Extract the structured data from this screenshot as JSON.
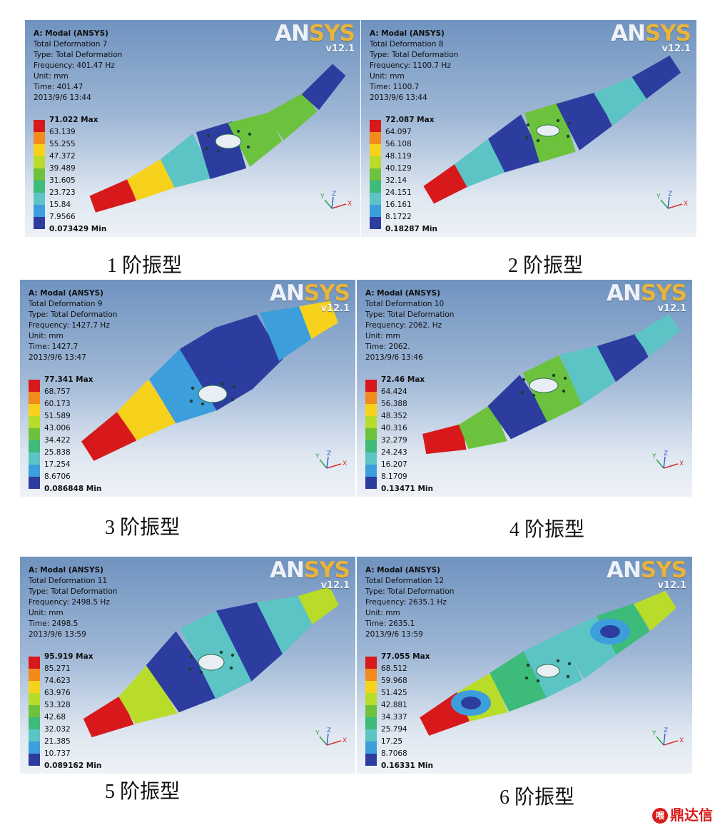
{
  "panels": [
    {
      "lines": [
        "A: Modal (ANSYS)",
        "Total Deformation 7",
        "Type: Total Deformation",
        "Frequency: 401.47 Hz",
        "Unit: mm",
        "Time: 401.47",
        "2013/9/6 13:44"
      ],
      "legend": [
        "71.022 Max",
        "63.139",
        "55.255",
        "47.372",
        "39.489",
        "31.605",
        "23.723",
        "15.84",
        "7.9566",
        "0.073429 Min"
      ],
      "caption": "1 阶振型"
    },
    {
      "lines": [
        "A: Modal (ANSYS)",
        "Total Deformation 8",
        "Type: Total Deformation",
        "Frequency: 1100.7 Hz",
        "Unit: mm",
        "Time: 1100.7",
        "2013/9/6 13:44"
      ],
      "legend": [
        "72.087 Max",
        "64.097",
        "56.108",
        "48.119",
        "40.129",
        "32.14",
        "24.151",
        "16.161",
        "8.1722",
        "0.18287 Min"
      ],
      "caption": "2 阶振型"
    },
    {
      "lines": [
        "A: Modal (ANSYS)",
        "Total Deformation 9",
        "Type: Total Deformation",
        "Frequency: 1427.7 Hz",
        "Unit: mm",
        "Time: 1427.7",
        "2013/9/6 13:47"
      ],
      "legend": [
        "77.341 Max",
        "68.757",
        "60.173",
        "51.589",
        "43.006",
        "34.422",
        "25.838",
        "17.254",
        "8.6706",
        "0.086848 Min"
      ],
      "caption": "3 阶振型"
    },
    {
      "lines": [
        "A: Modal (ANSYS)",
        "Total Deformation 10",
        "Type: Total Deformation",
        "Frequency: 2062. Hz",
        "Unit: mm",
        "Time: 2062.",
        "2013/9/6 13:46"
      ],
      "legend": [
        "72.46 Max",
        "64.424",
        "56.388",
        "48.352",
        "40.316",
        "32.279",
        "24.243",
        "16.207",
        "8.1709",
        "0.13471 Min"
      ],
      "caption": "4 阶振型"
    },
    {
      "lines": [
        "A: Modal (ANSYS)",
        "Total Deformation 11",
        "Type: Total Deformation",
        "Frequency: 2498.5 Hz",
        "Unit: mm",
        "Time: 2498.5",
        "2013/9/6 13:59"
      ],
      "legend": [
        "95.919 Max",
        "85.271",
        "74.623",
        "63.976",
        "53.328",
        "42.68",
        "32.032",
        "21.385",
        "10.737",
        "0.089162 Min"
      ],
      "caption": "5 阶振型"
    },
    {
      "lines": [
        "A: Modal (ANSYS)",
        "Total Deformation 12",
        "Type: Total Deformation",
        "Frequency: 2635.1 Hz",
        "Unit: mm",
        "Time: 2635.1",
        "2013/9/6 13:59"
      ],
      "legend": [
        "77.055 Max",
        "68.512",
        "59.968",
        "51.425",
        "42.881",
        "34.337",
        "25.794",
        "17.25",
        "8.7068",
        "0.16331 Min"
      ],
      "caption": "6 阶振型"
    }
  ],
  "logo": {
    "brand_a": "AN",
    "brand_b": "SYS",
    "version": "v12.1"
  },
  "triad_labels": {
    "x": "X",
    "y": "Y",
    "z": "Z"
  },
  "legend_colors": [
    "#d7191c",
    "#f28a1c",
    "#f6d21c",
    "#b9dc2a",
    "#6cc23c",
    "#3cbb7a",
    "#5cc4c4",
    "#3c9fdc",
    "#2c3c9f"
  ],
  "watermark": {
    "icon": "喂",
    "text": "鼎达信"
  }
}
